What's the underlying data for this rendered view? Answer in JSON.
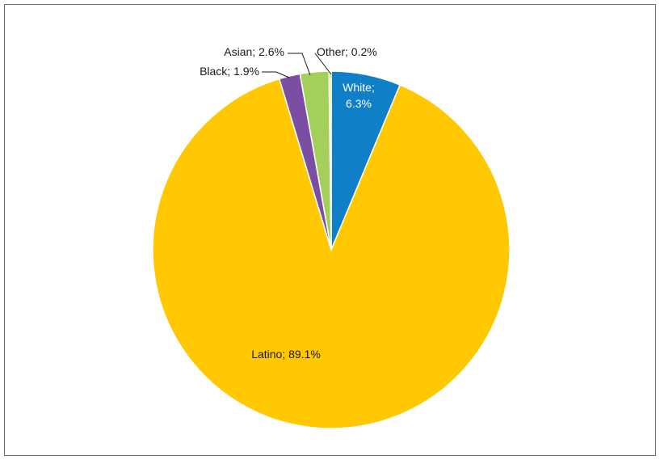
{
  "chart_data": {
    "type": "pie",
    "slices": [
      {
        "name": "White",
        "value": 6.3,
        "label_lines": [
          "White;",
          "6.3%"
        ],
        "color": "#0f7fc8"
      },
      {
        "name": "Latino",
        "value": 89.1,
        "label_lines": [
          "Latino; 89.1%"
        ],
        "color": "#ffc800"
      },
      {
        "name": "Black",
        "value": 1.9,
        "label_lines": [
          "Black; 1.9%"
        ],
        "color": "#7b4ea3"
      },
      {
        "name": "Asian",
        "value": 2.6,
        "label_lines": [
          "Asian; 2.6%"
        ],
        "color": "#a3cf5b"
      },
      {
        "name": "Other",
        "value": 0.2,
        "label_lines": [
          "Other; 0.2%"
        ],
        "color": "#f0e44a"
      }
    ],
    "start_angle": "12 o'clock",
    "direction": "clockwise",
    "legend": "none"
  }
}
